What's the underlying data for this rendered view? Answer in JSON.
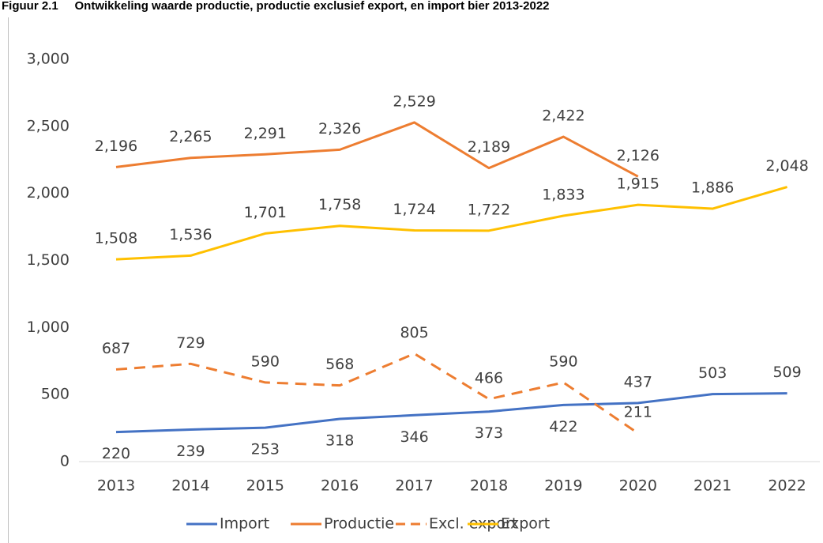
{
  "chart_data": {
    "type": "line",
    "title": "Figuur 2.1     Ontwikkeling waarde productie, productie exclusief export, en import bier 2013-2022",
    "categories": [
      "2013",
      "2014",
      "2015",
      "2016",
      "2017",
      "2018",
      "2019",
      "2020",
      "2021",
      "2022"
    ],
    "series": [
      {
        "name": "Import",
        "color": "#4472c4",
        "line_style": "solid",
        "values": [
          220,
          239,
          253,
          318,
          346,
          373,
          422,
          437,
          503,
          509
        ]
      },
      {
        "name": "Productie",
        "color": "#ed7d31",
        "line_style": "solid",
        "values": [
          2196,
          2265,
          2291,
          2326,
          2529,
          2189,
          2422,
          2126,
          null,
          null
        ],
        "value_labels": [
          "2,196",
          "2,265",
          "2,291",
          "2,326",
          "2,529",
          "2,189",
          "2,422",
          "2,126",
          null,
          null
        ]
      },
      {
        "name": "Excl. export",
        "color": "#ed7d31",
        "line_style": "dashed",
        "values": [
          687,
          729,
          590,
          568,
          805,
          466,
          590,
          211,
          null,
          null
        ]
      },
      {
        "name": "Export",
        "color": "#ffc000",
        "line_style": "solid",
        "values": [
          1508,
          1536,
          1701,
          1758,
          1724,
          1722,
          1833,
          1915,
          1886,
          2048
        ],
        "value_labels": [
          "1,508",
          "1,536",
          "1,701",
          "1,758",
          "1,724",
          "1,722",
          "1,833",
          "1,915",
          "1,886",
          "2,048"
        ]
      }
    ],
    "ylim": [
      0,
      3000
    ],
    "yticks": [
      0,
      500,
      {
        "value": 1000,
        "label": "1,000"
      },
      {
        "value": 1500,
        "label": "1,500"
      },
      {
        "value": 2000,
        "label": "2,000"
      },
      {
        "value": 2500,
        "label": "2,500"
      },
      {
        "value": 3000,
        "label": "3,000"
      }
    ],
    "grid": false,
    "legend": "bottom"
  }
}
